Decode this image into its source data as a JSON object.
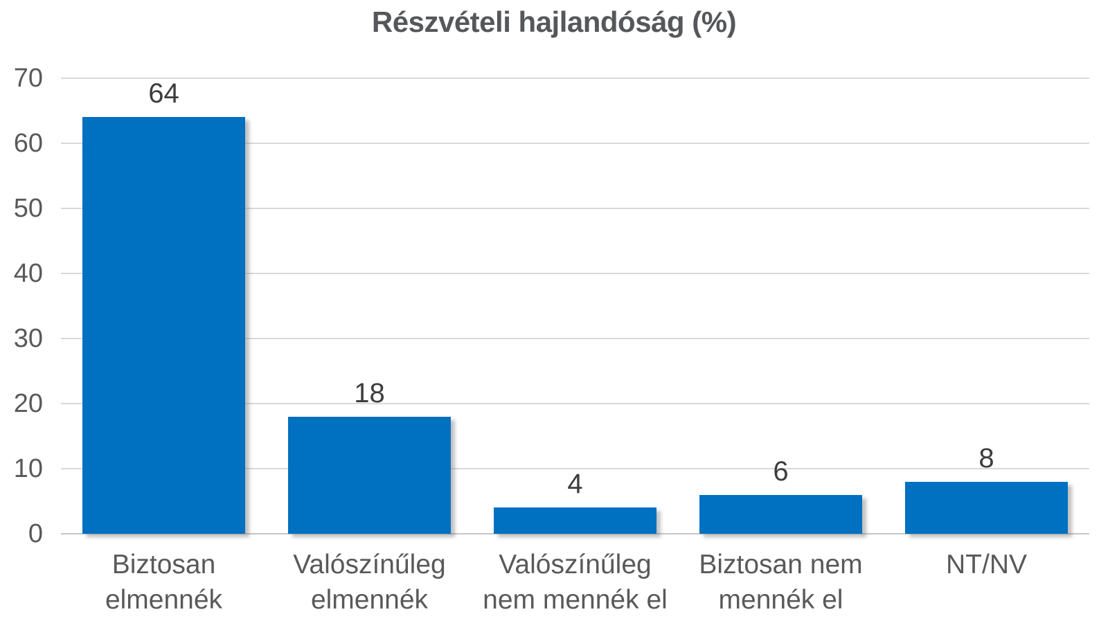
{
  "chart_data": {
    "type": "bar",
    "title": "Részvételi hajlandóság (%)",
    "categories": [
      "Biztosan elmennék",
      "Valószínűleg elmennék",
      "Valószínűleg nem mennék el",
      "Biztosan nem mennék el",
      "NT/NV"
    ],
    "category_label_lines": [
      [
        "Biztosan",
        "elmennék"
      ],
      [
        "Valószínűleg",
        "elmennék"
      ],
      [
        "Valószínűleg",
        "nem mennék el"
      ],
      [
        "Biztosan nem",
        "mennék el"
      ],
      [
        "NT/NV"
      ]
    ],
    "values": [
      64,
      18,
      4,
      6,
      8
    ],
    "xlabel": "",
    "ylabel": "",
    "ylim": [
      0,
      70
    ],
    "yticks": [
      0,
      10,
      20,
      30,
      40,
      50,
      60,
      70
    ],
    "grid": true,
    "legend_position": "none",
    "bar_color": "#0070c0",
    "grid_color": "#d9d9d9",
    "axis_text_color": "#595959",
    "value_label_color": "#3d3d3d",
    "title_color": "#55575a"
  }
}
